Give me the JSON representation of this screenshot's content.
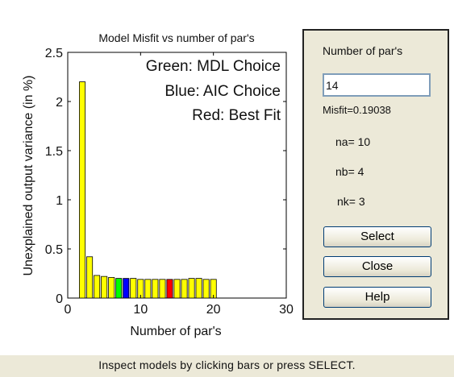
{
  "chart_data": {
    "type": "bar",
    "title": "Model Misfit vs number of par's",
    "xlabel": "Number of par's",
    "ylabel": "Unexplained output variance (in %)",
    "xlim": [
      0,
      30
    ],
    "ylim": [
      0,
      2.5
    ],
    "x_ticks": [
      "0",
      "10",
      "20",
      "30"
    ],
    "y_ticks": [
      "0",
      "0.5",
      "1",
      "1.5",
      "2",
      "2.5"
    ],
    "grid": false,
    "x": [
      2,
      3,
      4,
      5,
      6,
      7,
      8,
      9,
      10,
      11,
      12,
      13,
      14,
      15,
      16,
      17,
      18,
      19,
      20
    ],
    "values": [
      2.2,
      0.42,
      0.23,
      0.22,
      0.21,
      0.2,
      0.2,
      0.2,
      0.19,
      0.19,
      0.19,
      0.19,
      0.19,
      0.19,
      0.19,
      0.2,
      0.2,
      0.19,
      0.19
    ],
    "colors": [
      "#ffff00",
      "#ffff00",
      "#ffff00",
      "#ffff00",
      "#ffff00",
      "#00ff00",
      "#0000ff",
      "#ffff00",
      "#ffff00",
      "#ffff00",
      "#ffff00",
      "#ffff00",
      "#ff0000",
      "#ffff00",
      "#ffff00",
      "#ffff00",
      "#ffff00",
      "#ffff00",
      "#ffff00"
    ],
    "annotations": [
      "Green: MDL Choice",
      "Blue: AIC Choice",
      "Red: Best Fit"
    ]
  },
  "panel": {
    "heading": "Number of par's",
    "input_value": "14",
    "misfit": "Misfit=0.19038",
    "na": "na= 10",
    "nb": "nb= 4",
    "nk": "nk= 3",
    "buttons": {
      "select": "Select",
      "close": "Close",
      "help": "Help"
    }
  },
  "status_text": "Inspect models by clicking bars or press SELECT.",
  "colors": {
    "panel_bg": "#ece9d8",
    "bar_default": "#ffff00",
    "mdl": "#00ff00",
    "aic": "#0000ff",
    "best": "#ff0000"
  }
}
